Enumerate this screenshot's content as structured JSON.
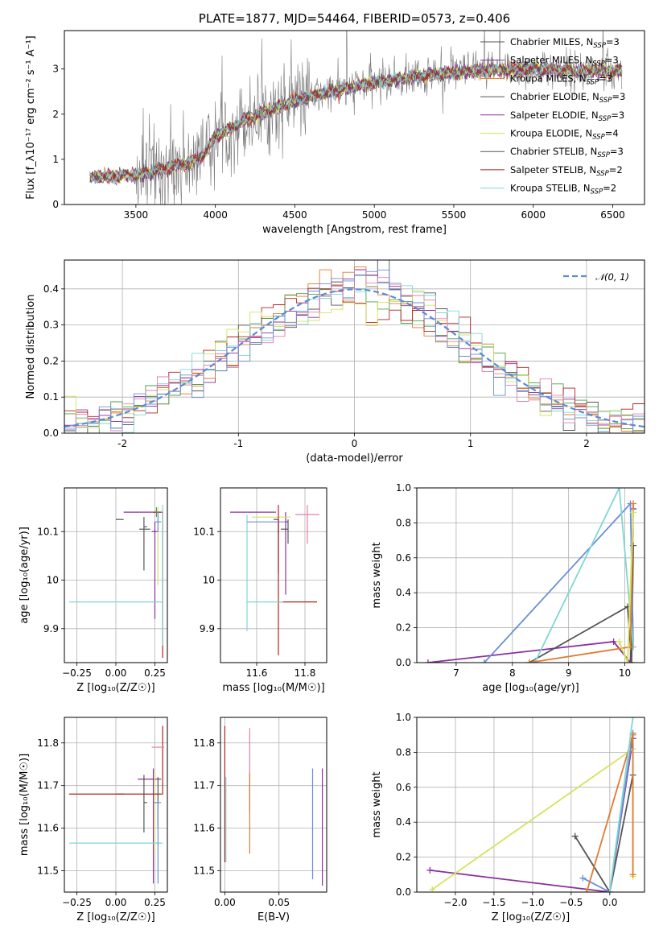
{
  "colors": [
    "#555555",
    "#8b2f9e",
    "#e07b2e",
    "#555555",
    "#8b2f9e",
    "#d6e35a",
    "#555555",
    "#b22222",
    "#7fd6d6",
    "#6a8fd6",
    "#e57fa8",
    "#4aa04a"
  ],
  "chart_data": [
    {
      "id": "spectrum",
      "type": "line",
      "title": "PLATE=1877, MJD=54464, FIBERID=0573, z=0.406",
      "xlabel": "wavelength [Angstrom, rest frame]",
      "ylabel": "Flux [f_λ10⁻¹⁷ erg cm⁻² s⁻¹ A⁻¹]",
      "xlim": [
        3050,
        6700
      ],
      "ylim": [
        0,
        3.85
      ],
      "xticks": [
        3500,
        4000,
        4500,
        5000,
        5500,
        6000,
        6500
      ],
      "yticks": [
        0,
        1,
        2,
        3
      ],
      "grid": false,
      "legend_position": "top-right",
      "legend": [
        {
          "label": "Chabrier MILES, N",
          "sub": "SSP",
          "rest": "=3",
          "color": "#555555"
        },
        {
          "label": "Salpeter MILES, N",
          "sub": "SSP",
          "rest": "=3",
          "color": "#8b2f9e"
        },
        {
          "label": "Kroupa MILES, N",
          "sub": "SSP",
          "rest": "=3",
          "color": "#e07b2e"
        },
        {
          "label": "Chabrier ELODIE, N",
          "sub": "SSP",
          "rest": "=3",
          "color": "#555555"
        },
        {
          "label": "Salpeter ELODIE, N",
          "sub": "SSP",
          "rest": "=3",
          "color": "#8b2f9e"
        },
        {
          "label": "Kroupa ELODIE, N",
          "sub": "SSP",
          "rest": "=4",
          "color": "#d6e35a"
        },
        {
          "label": "Chabrier STELIB, N",
          "sub": "SSP",
          "rest": "=3",
          "color": "#555555"
        },
        {
          "label": "Salpeter STELIB, N",
          "sub": "SSP",
          "rest": "=2",
          "color": "#b22222"
        },
        {
          "label": "Kroupa STELIB, N",
          "sub": "SSP",
          "rest": "=2",
          "color": "#7fd6d6"
        }
      ],
      "data_range": [
        3210,
        6560
      ],
      "continuum": [
        [
          3210,
          0.6
        ],
        [
          3500,
          0.65
        ],
        [
          3700,
          0.8
        ],
        [
          3900,
          1.0
        ],
        [
          4000,
          1.5
        ],
        [
          4200,
          1.9
        ],
        [
          4500,
          2.3
        ],
        [
          4800,
          2.55
        ],
        [
          5000,
          2.7
        ],
        [
          5300,
          2.85
        ],
        [
          5600,
          2.95
        ],
        [
          6000,
          3.0
        ],
        [
          6300,
          2.95
        ],
        [
          6560,
          2.95
        ]
      ]
    },
    {
      "id": "residuals",
      "type": "histogram",
      "xlabel": "(data-model)/error",
      "ylabel": "Normed distribution",
      "xlim": [
        -2.5,
        2.5
      ],
      "ylim": [
        0,
        0.48
      ],
      "xticks": [
        -2,
        -1,
        0,
        1,
        2
      ],
      "yticks": [
        0.0,
        0.1,
        0.2,
        0.3,
        0.4
      ],
      "grid": true,
      "legend_position": "top-right",
      "legend": [
        {
          "label": "𝒩(0, 1)",
          "color": "#5b8bd6",
          "style": "dashed"
        }
      ],
      "bin_width": 0.1
    },
    {
      "id": "age_vs_Z",
      "type": "errorbar",
      "xlabel": "Z [log₁₀(Z/Z☉)]",
      "ylabel": "age  [log₁₀(age/yr)]",
      "xlim": [
        -0.33,
        0.33
      ],
      "ylim": [
        9.83,
        10.19
      ],
      "xticks": [
        -0.25,
        0.0,
        0.25
      ],
      "xticklabels": [
        "−0.25",
        "0.00",
        "0.25"
      ],
      "yticks": [
        9.9,
        10.0,
        10.1
      ],
      "grid": true,
      "points": [
        {
          "x": 0.05,
          "y": 10.125,
          "xerr": [
            0.05,
            0.0
          ],
          "yerr": [
            0.0,
            0.0
          ],
          "color": "#555555"
        },
        {
          "x": 0.21,
          "y": 10.14,
          "xerr": [
            0.16,
            0.08
          ],
          "yerr": [
            0.0,
            0.0
          ],
          "color": "#8b2f9e"
        },
        {
          "x": 0.23,
          "y": 10.14,
          "xerr": [
            0.0,
            0.0
          ],
          "yerr": [
            0.0,
            0.0
          ],
          "color": "#e07b2e"
        },
        {
          "x": 0.18,
          "y": 10.11,
          "xerr": [
            0.0,
            0.02
          ],
          "yerr": [
            0.09,
            0.02
          ],
          "color": "#555555"
        },
        {
          "x": 0.25,
          "y": 10.1,
          "xerr": [
            0.02,
            0.02
          ],
          "yerr": [
            0.18,
            0.02
          ],
          "color": "#8b2f9e"
        },
        {
          "x": 0.27,
          "y": 10.13,
          "xerr": [
            0.0,
            0.0
          ],
          "yerr": [
            0.14,
            0.02
          ],
          "color": "#d6e35a"
        },
        {
          "x": 0.2,
          "y": 10.105,
          "xerr": [
            0.05,
            0.02
          ],
          "yerr": [
            0.0,
            0.0
          ],
          "color": "#555555"
        },
        {
          "x": 0.3,
          "y": 10.14,
          "xerr": [
            0.06,
            0.0
          ],
          "yerr": [
            0.3,
            0.0
          ],
          "color": "#b22222"
        },
        {
          "x": 0.3,
          "y": 9.955,
          "xerr": [
            0.6,
            0.0
          ],
          "yerr": [
            0.09,
            0.2
          ],
          "color": "#7fd6d6"
        },
        {
          "x": 0.27,
          "y": 10.12,
          "xerr": [
            0.02,
            0.02
          ],
          "yerr": [
            0.02,
            0.02
          ],
          "color": "#6a8fd6"
        },
        {
          "x": 0.26,
          "y": 10.13,
          "xerr": [
            0.0,
            0.0
          ],
          "yerr": [
            0.0,
            0.02
          ],
          "color": "#4aa04a"
        }
      ]
    },
    {
      "id": "age_vs_mass",
      "type": "errorbar",
      "xlabel": "mass [log₁₀(M/M☉)]",
      "ylabel": "",
      "xlim": [
        11.45,
        11.89
      ],
      "ylim": [
        9.83,
        10.19
      ],
      "xticks": [
        11.6,
        11.8
      ],
      "yticks": [
        9.9,
        10.0,
        10.1
      ],
      "grid": true,
      "points": [
        {
          "x": 11.69,
          "y": 10.125,
          "xerr": [
            0.02,
            0.0
          ],
          "yerr": [
            0.03,
            0.0
          ],
          "color": "#555555"
        },
        {
          "x": 11.68,
          "y": 10.14,
          "xerr": [
            0.19,
            0.0
          ],
          "yerr": [
            0.0,
            0.0
          ],
          "color": "#8b2f9e"
        },
        {
          "x": 11.7,
          "y": 10.14,
          "xerr": [
            0.0,
            0.0
          ],
          "yerr": [
            0.0,
            0.0
          ],
          "color": "#e07b2e"
        },
        {
          "x": 11.73,
          "y": 10.105,
          "xerr": [
            0.03,
            0.0
          ],
          "yerr": [
            0.03,
            0.02
          ],
          "color": "#555555"
        },
        {
          "x": 11.72,
          "y": 10.12,
          "xerr": [
            0.0,
            0.01
          ],
          "yerr": [
            0.15,
            0.02
          ],
          "color": "#8b2f9e"
        },
        {
          "x": 11.7,
          "y": 10.13,
          "xerr": [
            0.12,
            0.04
          ],
          "yerr": [
            0.0,
            0.0
          ],
          "color": "#d6e35a"
        },
        {
          "x": 11.69,
          "y": 10.105,
          "xerr": [
            0.0,
            0.0
          ],
          "yerr": [
            0.09,
            0.02
          ],
          "color": "#555555"
        },
        {
          "x": 11.69,
          "y": 9.955,
          "xerr": [
            0.0,
            0.16
          ],
          "yerr": [
            0.11,
            0.2
          ],
          "color": "#b22222"
        },
        {
          "x": 11.56,
          "y": 9.955,
          "xerr": [
            0.0,
            0.15
          ],
          "yerr": [
            0.06,
            0.18
          ],
          "color": "#7fd6d6"
        },
        {
          "x": 11.65,
          "y": 10.12,
          "xerr": [
            0.09,
            0.07
          ],
          "yerr": [
            0.0,
            0.0
          ],
          "color": "#6a8fd6"
        },
        {
          "x": 11.81,
          "y": 10.135,
          "xerr": [
            0.05,
            0.05
          ],
          "yerr": [
            0.06,
            0.02
          ],
          "color": "#e57fa8"
        }
      ]
    },
    {
      "id": "massweight_vs_age",
      "type": "line",
      "xlabel": "age  [log₁₀(age/yr)]",
      "ylabel": "mass weight",
      "xlim": [
        6.3,
        10.35
      ],
      "ylim": [
        0,
        1.0
      ],
      "xticks": [
        7,
        8,
        9,
        10
      ],
      "yticks": [
        0.0,
        0.2,
        0.4,
        0.6,
        0.8,
        1.0
      ],
      "grid": true,
      "series": [
        {
          "x": [
            6.5,
            9.8,
            10.1,
            10.15
          ],
          "y": [
            0.0,
            0.12,
            0.0,
            0.88
          ],
          "color": "#8b2f9e"
        },
        {
          "x": [
            8.3,
            10.05,
            10.12,
            10.15
          ],
          "y": [
            0.0,
            0.32,
            0.0,
            0.67
          ],
          "color": "#555555"
        },
        {
          "x": [
            7.5,
            10.1,
            10.15
          ],
          "y": [
            0.0,
            0.91,
            0.09
          ],
          "color": "#6a8fd6"
        },
        {
          "x": [
            8.4,
            9.9,
            10.15
          ],
          "y": [
            0.0,
            1.0,
            0.09
          ],
          "color": "#7fd6d6"
        },
        {
          "x": [
            8.3,
            10.1,
            10.15
          ],
          "y": [
            0.0,
            0.09,
            0.91
          ],
          "color": "#e07b2e"
        },
        {
          "x": [
            9.9,
            10.05,
            10.15
          ],
          "y": [
            0.12,
            0.0,
            0.86
          ],
          "color": "#d6e35a"
        }
      ]
    },
    {
      "id": "mass_vs_Z",
      "type": "errorbar",
      "xlabel": "Z [log₁₀(Z/Z☉)]",
      "ylabel": "mass [log₁₀(M/M☉)]",
      "xlim": [
        -0.33,
        0.33
      ],
      "ylim": [
        11.45,
        11.86
      ],
      "xticks": [
        -0.25,
        0.0,
        0.25
      ],
      "xticklabels": [
        "−0.25",
        "0.00",
        "0.25"
      ],
      "yticks": [
        11.5,
        11.6,
        11.7,
        11.8
      ],
      "grid": true,
      "points": [
        {
          "x": 0.05,
          "y": 11.68,
          "xerr": [
            0.05,
            0.0
          ],
          "yerr": [
            0.0,
            0.0
          ],
          "color": "#555555"
        },
        {
          "x": 0.23,
          "y": 11.715,
          "xerr": [
            0.09,
            0.06
          ],
          "yerr": [
            0.0,
            0.0
          ],
          "color": "#8b2f9e"
        },
        {
          "x": 0.23,
          "y": 11.68,
          "xerr": [
            0.0,
            0.0
          ],
          "yerr": [
            0.0,
            0.0
          ],
          "color": "#e07b2e"
        },
        {
          "x": 0.18,
          "y": 11.66,
          "xerr": [
            0.0,
            0.02
          ],
          "yerr": [
            0.07,
            0.065
          ],
          "color": "#555555"
        },
        {
          "x": 0.24,
          "y": 11.66,
          "xerr": [
            0.0,
            0.0
          ],
          "yerr": [
            0.19,
            0.08
          ],
          "color": "#8b2f9e"
        },
        {
          "x": 0.25,
          "y": 11.68,
          "xerr": [
            0.0,
            0.0
          ],
          "yerr": [
            0.14,
            0.05
          ],
          "color": "#d6e35a"
        },
        {
          "x": 0.27,
          "y": 11.7,
          "xerr": [
            0.0,
            0.0
          ],
          "yerr": [
            0.1,
            0.02
          ],
          "color": "#555555"
        },
        {
          "x": 0.3,
          "y": 11.68,
          "xerr": [
            0.6,
            0.0
          ],
          "yerr": [
            0.0,
            0.16
          ],
          "color": "#b22222"
        },
        {
          "x": 0.3,
          "y": 11.565,
          "xerr": [
            0.6,
            0.0
          ],
          "yerr": [
            0.0,
            0.0
          ],
          "color": "#7fd6d6"
        },
        {
          "x": 0.27,
          "y": 11.66,
          "xerr": [
            0.03,
            0.02
          ],
          "yerr": [
            0.19,
            0.0
          ],
          "color": "#6a8fd6"
        },
        {
          "x": 0.27,
          "y": 11.79,
          "xerr": [
            0.04,
            0.04
          ],
          "yerr": [
            0.0,
            0.0
          ],
          "color": "#e57fa8"
        }
      ]
    },
    {
      "id": "mass_vs_EBV",
      "type": "errorbar",
      "xlabel": "E(B-V)",
      "ylabel": "",
      "xlim": [
        -0.004,
        0.094
      ],
      "ylim": [
        11.45,
        11.86
      ],
      "xticks": [
        0.0,
        0.05
      ],
      "xticklabels": [
        "0.00",
        "0.05"
      ],
      "yticks": [
        11.5,
        11.6,
        11.7,
        11.8
      ],
      "grid": true,
      "points": [
        {
          "x": 0.0,
          "y": 11.68,
          "xerr": [
            0.0,
            0.0
          ],
          "yerr": [
            0.16,
            0.16
          ],
          "color": "#b22222"
        },
        {
          "x": 0.001,
          "y": 11.62,
          "xerr": [
            0.0,
            0.0
          ],
          "yerr": [
            0.1,
            0.1
          ],
          "color": "#7fd6d6"
        },
        {
          "x": 0.023,
          "y": 11.69,
          "xerr": [
            0.0,
            0.0
          ],
          "yerr": [
            0.05,
            0.145
          ],
          "color": "#e57fa8"
        },
        {
          "x": 0.023,
          "y": 11.63,
          "xerr": [
            0.0,
            0.0
          ],
          "yerr": [
            0.09,
            0.1
          ],
          "color": "#e07b2e"
        },
        {
          "x": 0.081,
          "y": 11.61,
          "xerr": [
            0.0,
            0.0
          ],
          "yerr": [
            0.13,
            0.13
          ],
          "color": "#6a8fd6"
        },
        {
          "x": 0.09,
          "y": 11.6,
          "xerr": [
            0.0,
            0.0
          ],
          "yerr": [
            0.135,
            0.14
          ],
          "color": "#8b2f9e"
        }
      ]
    },
    {
      "id": "massweight_vs_Z",
      "type": "line",
      "xlabel": "Z [log₁₀(Z/Z☉)]",
      "ylabel": "mass weight",
      "xlim": [
        -2.5,
        0.45
      ],
      "ylim": [
        0,
        1.0
      ],
      "xticks": [
        -2.0,
        -1.5,
        -1.0,
        -0.5,
        0.0
      ],
      "xticklabels": [
        "−2.0",
        "−1.5",
        "−1.0",
        "−0.5",
        "0.0"
      ],
      "yticks": [
        0.0,
        0.2,
        0.4,
        0.6,
        0.8,
        1.0
      ],
      "grid": true,
      "series": [
        {
          "x": [
            -2.33,
            0.0,
            0.3
          ],
          "y": [
            0.125,
            0.0,
            0.88
          ],
          "color": "#8b2f9e"
        },
        {
          "x": [
            -2.3,
            0.3,
            0.3
          ],
          "y": [
            0.015,
            0.82,
            0.09
          ],
          "color": "#d6e35a"
        },
        {
          "x": [
            -0.45,
            0.0,
            0.3
          ],
          "y": [
            0.32,
            0.0,
            0.67
          ],
          "color": "#555555"
        },
        {
          "x": [
            -0.35,
            0.0,
            0.3
          ],
          "y": [
            0.08,
            0.0,
            0.91
          ],
          "color": "#6a8fd6"
        },
        {
          "x": [
            -0.3,
            0.3,
            0.3
          ],
          "y": [
            0.0,
            0.9,
            0.1
          ],
          "color": "#e07b2e"
        },
        {
          "x": [
            0.0,
            0.3
          ],
          "y": [
            0.0,
            1.0
          ],
          "color": "#7fd6d6"
        }
      ]
    }
  ]
}
